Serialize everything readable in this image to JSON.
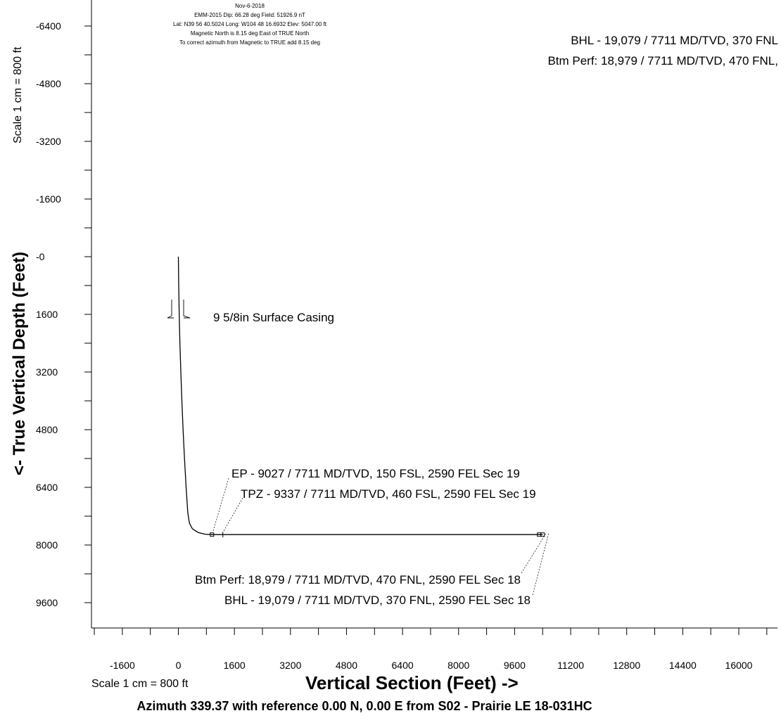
{
  "header": {
    "date": "Nov-6-2018",
    "line1": "EMM-2015 Dip: 66.28 deg Field: 51926.9 nT",
    "line2": "Lat: N39 56 40.5024 Long: W104 48 16.6932 Elev: 5047.00 ft",
    "line3": "Magnetic North is 8.15 deg East of TRUE North",
    "line4": "To correct azimuth from Magnetic to TRUE add 8.15 deg"
  },
  "top_right": {
    "bhl": "BHL - 19,079 / 7711 MD/TVD, 370 FNL",
    "btm_perf": "Btm Perf: 18,979 / 7711 MD/TVD, 470 FNL,"
  },
  "annotations": {
    "casing": "9 5/8in Surface Casing",
    "ep": "EP - 9027 / 7711 MD/TVD, 150 FSL, 2590 FEL Sec 19",
    "tpz": "TPZ - 9337 / 7711 MD/TVD, 460 FSL, 2590 FEL Sec 19",
    "btm_perf": "Btm Perf: 18,979 / 7711 MD/TVD, 470 FNL, 2590 FEL Sec 18",
    "bhl": "BHL - 19,079 / 7711 MD/TVD, 370 FNL, 2590 FEL Sec 18"
  },
  "scale_y": "Scale 1 cm = 800 ft",
  "scale_x": "Scale 1 cm = 800 ft",
  "azimuth": "Azimuth 339.37 with reference 0.00 N, 0.00 E from S02 - Prairie LE 18-031HC",
  "chart_data": {
    "type": "line",
    "title": "",
    "xlabel": "Vertical Section (Feet) ->",
    "ylabel": "<- True Vertical Depth (Feet)",
    "xlim": [
      -2400,
      16800
    ],
    "ylim": [
      -6400,
      10400
    ],
    "y_inverted": true,
    "grid": false,
    "x_ticks": [
      -1600,
      0,
      1600,
      3200,
      4800,
      6400,
      8000,
      9600,
      11200,
      12800,
      14400,
      16000
    ],
    "x_tick_labels": [
      "-1600",
      "0",
      "1600",
      "3200",
      "4800",
      "6400",
      "8000",
      "9600",
      "11200",
      "12800",
      "14400",
      "16000"
    ],
    "y_ticks": [
      -6400,
      -4800,
      -3200,
      -1600,
      0,
      1600,
      3200,
      4800,
      6400,
      8000,
      9600
    ],
    "y_tick_labels": [
      "-6400",
      "-4800",
      "-3200",
      "-1600",
      "-0",
      "1600",
      "3200",
      "4800",
      "6400",
      "8000",
      "9600"
    ],
    "series": [
      {
        "x": [
          0,
          10,
          25,
          45,
          70,
          100,
          135,
          175,
          220,
          270,
          300,
          320,
          400,
          560,
          760,
          960,
          1000,
          10400
        ],
        "y": [
          0,
          800,
          1600,
          2400,
          3200,
          4000,
          4800,
          5600,
          6400,
          7100,
          7300,
          7400,
          7550,
          7650,
          7700,
          7711,
          7711,
          7711
        ]
      }
    ],
    "markers": [
      {
        "name": "EP",
        "x": 960,
        "y": 7711
      },
      {
        "name": "TPZ",
        "x": 1270,
        "y": 7711
      },
      {
        "name": "Btm Perf",
        "x": 10300,
        "y": 7711
      },
      {
        "name": "BHL",
        "x": 10400,
        "y": 7711
      }
    ],
    "casing": {
      "x": 0,
      "y": 1600
    }
  }
}
